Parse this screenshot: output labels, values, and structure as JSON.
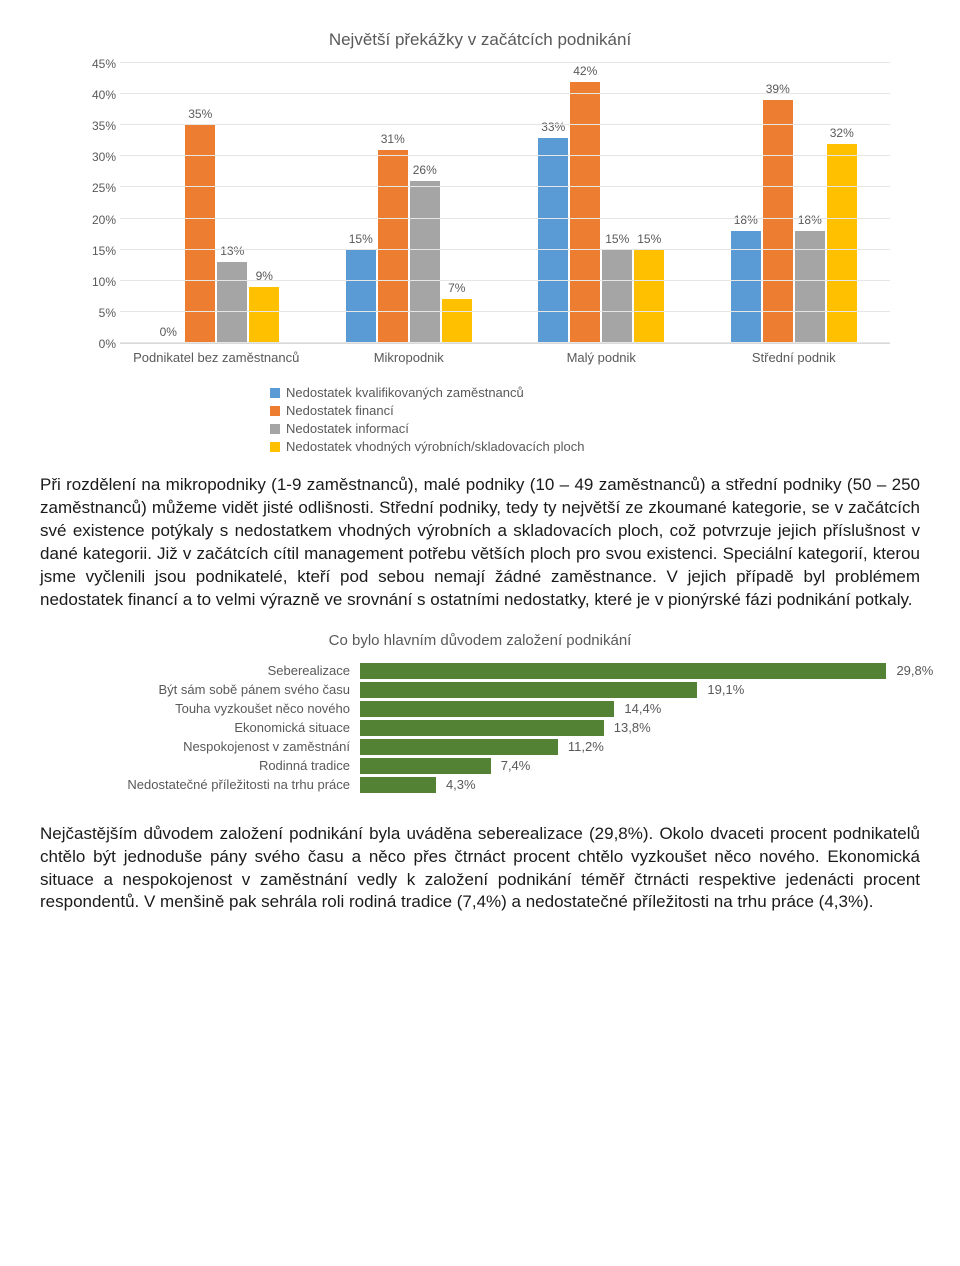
{
  "chart1": {
    "type": "bar",
    "title": "Největší překážky v začátcích podnikání",
    "y_unit": "%",
    "ymax": 45,
    "ytick_step": 5,
    "categories": [
      "Podnikatel bez zaměstnanců",
      "Mikropodnik",
      "Malý podnik",
      "Střední podnik"
    ],
    "series": [
      {
        "name": "Nedostatek kvalifikovaných zaměstnanců",
        "color": "#5b9bd5",
        "values": [
          0,
          15,
          33,
          18
        ]
      },
      {
        "name": "Nedostatek financí",
        "color": "#ed7d31",
        "values": [
          35,
          31,
          42,
          39
        ]
      },
      {
        "name": "Nedostatek informací",
        "color": "#a5a5a5",
        "values": [
          13,
          26,
          15,
          18
        ]
      },
      {
        "name": "Nedostatek vhodných výrobních/skladovacích ploch",
        "color": "#ffc000",
        "values": [
          9,
          7,
          15,
          32
        ]
      }
    ],
    "label_fontsize": 12,
    "title_fontsize": 17,
    "background_color": "#ffffff",
    "grid_color": "#e6e6e6",
    "axis_color": "#d9d9d9",
    "text_color": "#595959"
  },
  "paragraph1": "Při rozdělení na mikropodniky (1-9 zaměstnanců), malé podniky (10 – 49 zaměstnanců) a střední podniky (50 – 250 zaměstnanců) můžeme vidět jisté odlišnosti. Střední podniky, tedy ty největší ze zkoumané kategorie, se v začátcích své existence potýkaly s nedostatkem vhodných výrobních a skladovacích ploch, což potvrzuje jejich příslušnost v dané kategorii. Již v začátcích cítil management potřebu větších ploch pro svou existenci. Speciální kategorií, kterou jsme vyčlenili jsou podnikatelé, kteří pod sebou nemají žádné zaměstnance. V jejich případě byl problémem nedostatek financí a to velmi výrazně ve srovnání s ostatními nedostatky, které je v pionýrské fázi podnikání potkaly.",
  "chart2": {
    "type": "horizontal_bar",
    "title": "Co bylo hlavním důvodem založení podnikání",
    "bar_color": "#548235",
    "max_value": 30,
    "categories": [
      {
        "label": "Seberealizace",
        "value": 29.8
      },
      {
        "label": "Být sám sobě pánem svého času",
        "value": 19.1
      },
      {
        "label": "Touha vyzkoušet něco nového",
        "value": 14.4
      },
      {
        "label": "Ekonomická situace",
        "value": 13.8
      },
      {
        "label": "Nespokojenost v zaměstnání",
        "value": 11.2
      },
      {
        "label": "Rodinná tradice",
        "value": 7.4
      },
      {
        "label": "Nedostatečné příležitosti na trhu práce",
        "value": 4.3
      }
    ],
    "title_fontsize": 15,
    "label_fontsize": 13,
    "background_color": "#ffffff",
    "text_color": "#595959"
  },
  "paragraph2": "Nejčastějším důvodem založení podnikání byla uváděna seberealizace (29,8%). Okolo dvaceti procent podnikatelů chtělo být jednoduše pány svého času a něco přes čtrnáct procent chtělo vyzkoušet něco nového. Ekonomická situace a nespokojenost v zaměstnání vedly k založení podnikání téměř čtrnácti respektive jedenácti procent respondentů. V menšině pak sehrála roli rodiná tradice (7,4%) a nedostatečné příležitosti na trhu práce (4,3%)."
}
